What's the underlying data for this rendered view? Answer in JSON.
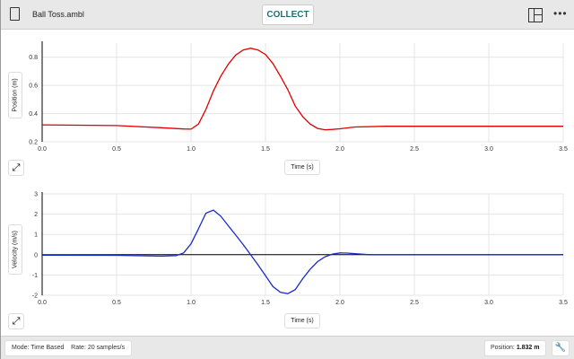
{
  "header": {
    "file_name": "Ball Toss.ambl",
    "collect_label": "COLLECT",
    "file_icon": "document-icon",
    "layout_icon": "layout-icon",
    "more_icon": "more-icon"
  },
  "footer": {
    "mode": "Mode: Time Based",
    "rate": "Rate: 20 samples/s",
    "position_label": "Position:",
    "position_value": "1.832 m",
    "tool_icon": "wrench-icon"
  },
  "colors": {
    "position": "#e00000",
    "velocity": "#1a2bc8",
    "zero_line": "#000000"
  },
  "chart_data": [
    {
      "type": "line",
      "ylabel": "Position (m)",
      "xlabel": "Time (s)",
      "xlim": [
        0,
        3.5
      ],
      "ylim": [
        0.2,
        0.9
      ],
      "xticks": [
        "0.0",
        "0.5",
        "1.0",
        "1.5",
        "2.0",
        "2.5",
        "3.0",
        "3.5"
      ],
      "yticks": [
        "0.2",
        "0.4",
        "0.6",
        "0.8"
      ],
      "grid": true,
      "series": [
        {
          "color": "#e00000",
          "x": [
            0,
            0.5,
            0.8,
            0.95,
            1.0,
            1.05,
            1.1,
            1.15,
            1.2,
            1.25,
            1.3,
            1.35,
            1.4,
            1.45,
            1.5,
            1.55,
            1.6,
            1.65,
            1.7,
            1.75,
            1.8,
            1.85,
            1.9,
            1.95,
            2.0,
            2.1,
            2.3,
            3.5
          ],
          "y": [
            0.32,
            0.315,
            0.3,
            0.291,
            0.29,
            0.326,
            0.43,
            0.56,
            0.666,
            0.75,
            0.815,
            0.851,
            0.864,
            0.851,
            0.819,
            0.755,
            0.666,
            0.57,
            0.453,
            0.379,
            0.326,
            0.295,
            0.285,
            0.288,
            0.292,
            0.305,
            0.31,
            0.31
          ]
        }
      ]
    },
    {
      "type": "line",
      "ylabel": "Velocity (m/s)",
      "xlabel": "Time (s)",
      "xlim": [
        0,
        3.5
      ],
      "ylim": [
        -2,
        3
      ],
      "xticks": [
        "0.0",
        "0.5",
        "1.0",
        "1.5",
        "2.0",
        "2.5",
        "3.0",
        "3.5"
      ],
      "yticks": [
        "-2",
        "-1",
        "0",
        "1",
        "2",
        "3"
      ],
      "grid": true,
      "series": [
        {
          "color": "#1a2bc8",
          "x": [
            0,
            0.5,
            0.8,
            0.9,
            0.95,
            1.0,
            1.05,
            1.1,
            1.15,
            1.2,
            1.25,
            1.3,
            1.35,
            1.4,
            1.45,
            1.5,
            1.55,
            1.6,
            1.65,
            1.7,
            1.75,
            1.8,
            1.85,
            1.9,
            1.95,
            2.0,
            2.05,
            2.1,
            2.2,
            3.5
          ],
          "y": [
            -0.02,
            -0.03,
            -0.07,
            -0.05,
            0.09,
            0.54,
            1.28,
            2.05,
            2.2,
            1.9,
            1.43,
            0.97,
            0.5,
            0,
            -0.5,
            -1.03,
            -1.57,
            -1.85,
            -1.92,
            -1.72,
            -1.18,
            -0.72,
            -0.34,
            -0.1,
            0.03,
            0.09,
            0.08,
            0.05,
            0,
            0
          ]
        }
      ]
    }
  ]
}
